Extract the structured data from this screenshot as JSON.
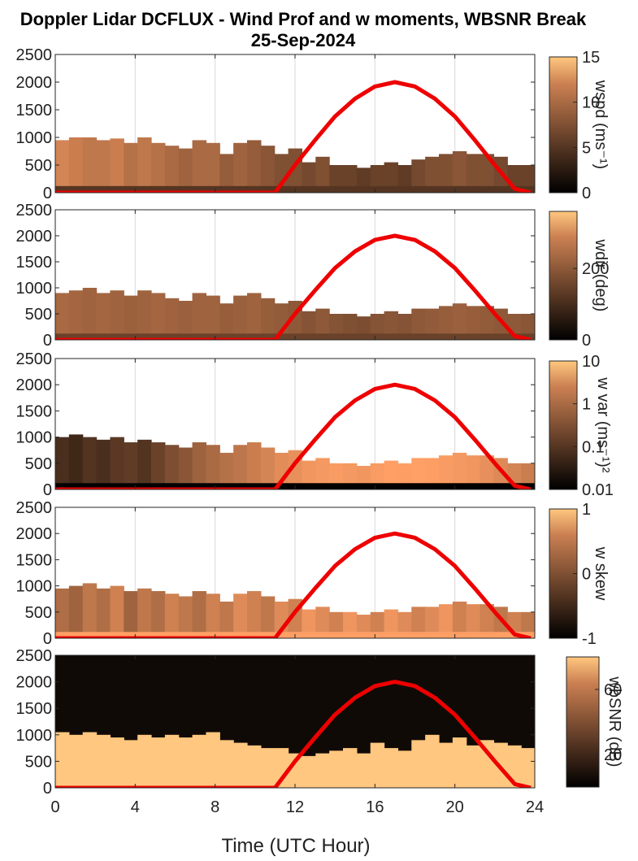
{
  "chart_data": {
    "type": "heatmap",
    "title": "Doppler Lidar DCFLUX - Wind Prof and w moments, WBSNR Break",
    "subtitle": "25-Sep-2024",
    "xlabel": "Time (UTC Hour)",
    "xlim": [
      0,
      24
    ],
    "xticks": [
      "0",
      "4",
      "8",
      "12",
      "16",
      "20",
      "24"
    ],
    "ylim": [
      0,
      2500
    ],
    "yticks": [
      "0",
      "500",
      "1000",
      "1500",
      "2000",
      "2500"
    ],
    "grid": true,
    "colormap": "copper",
    "overlay": {
      "type": "line",
      "color": "#ee0000",
      "x": [
        0,
        11,
        12,
        13,
        14,
        15,
        16,
        17,
        18,
        19,
        20,
        21,
        22,
        23,
        23.8
      ],
      "y": [
        0,
        0,
        500,
        950,
        1380,
        1700,
        1920,
        2000,
        1920,
        1700,
        1380,
        950,
        500,
        70,
        0
      ]
    },
    "panels": [
      {
        "colorbar_label": "wspd (ms⁻¹)",
        "clim": [
          0,
          15
        ],
        "colorbar_ticks": [
          "0",
          "5",
          "10",
          "15"
        ],
        "colorbar_scale": "linear",
        "layer_top_m": [
          950,
          1000,
          1000,
          950,
          980,
          900,
          1000,
          900,
          850,
          800,
          950,
          900,
          700,
          900,
          950,
          850,
          700,
          800,
          550,
          650,
          500,
          500,
          450,
          500,
          550,
          500,
          600,
          650,
          700,
          750,
          700,
          700,
          650,
          500,
          500
        ],
        "layer_value": [
          10,
          9.5,
          9,
          9,
          9.5,
          8.5,
          9,
          8.5,
          8,
          7.5,
          8,
          8,
          7,
          7.5,
          7,
          6.5,
          6,
          6,
          5.5,
          6,
          5,
          5,
          4.5,
          5,
          5,
          4.5,
          5.5,
          6,
          6,
          6.5,
          6,
          6,
          5.5,
          5,
          5
        ],
        "surface_value": 4
      },
      {
        "colorbar_label": "wdir (deg)",
        "clim": [
          0,
          360
        ],
        "colorbar_ticks": [
          "0",
          "200"
        ],
        "colorbar_scale": "linear",
        "layer_top_m": [
          900,
          950,
          1000,
          900,
          950,
          850,
          950,
          900,
          800,
          750,
          900,
          850,
          700,
          850,
          900,
          800,
          700,
          750,
          550,
          600,
          500,
          500,
          450,
          500,
          550,
          500,
          600,
          600,
          650,
          700,
          650,
          650,
          600,
          500,
          500
        ],
        "layer_value": [
          190,
          185,
          180,
          185,
          180,
          175,
          180,
          185,
          180,
          175,
          180,
          180,
          170,
          175,
          180,
          170,
          165,
          160,
          150,
          160,
          150,
          145,
          140,
          150,
          155,
          150,
          160,
          165,
          170,
          175,
          170,
          165,
          160,
          160,
          155
        ],
        "surface_value": 120
      },
      {
        "colorbar_label": "w var (ms⁻¹)²",
        "clim": [
          0.01,
          10
        ],
        "colorbar_ticks": [
          "0.01",
          "0.1",
          "1",
          "10"
        ],
        "colorbar_scale": "log",
        "layer_top_m": [
          1000,
          1050,
          1000,
          950,
          1000,
          900,
          950,
          900,
          850,
          800,
          900,
          850,
          700,
          850,
          900,
          800,
          700,
          750,
          550,
          600,
          500,
          500,
          450,
          500,
          550,
          500,
          600,
          600,
          650,
          700,
          650,
          650,
          600,
          500,
          500
        ],
        "layer_value": [
          0.05,
          0.04,
          0.06,
          0.05,
          0.07,
          0.08,
          0.06,
          0.1,
          0.15,
          0.2,
          0.3,
          0.4,
          0.5,
          0.6,
          0.8,
          1.0,
          1.3,
          1.5,
          1.8,
          2.0,
          2.2,
          2.0,
          1.8,
          2.2,
          2.5,
          2.4,
          2.6,
          2.4,
          2.2,
          2.0,
          1.8,
          1.5,
          1.2,
          1.0,
          0.8
        ],
        "surface_value": 0.01
      },
      {
        "colorbar_label": "w skew",
        "clim": [
          -1,
          1
        ],
        "colorbar_ticks": [
          "-1",
          "0",
          "1"
        ],
        "colorbar_scale": "linear",
        "layer_top_m": [
          950,
          1000,
          1050,
          950,
          1000,
          900,
          950,
          900,
          850,
          800,
          900,
          850,
          700,
          850,
          900,
          800,
          700,
          750,
          550,
          600,
          500,
          500,
          450,
          500,
          550,
          500,
          600,
          600,
          650,
          700,
          650,
          650,
          600,
          500,
          500
        ],
        "layer_value": [
          0.1,
          0.0,
          0.2,
          0.1,
          0.3,
          0.0,
          0.2,
          0.1,
          0.3,
          0.2,
          0.1,
          0.3,
          0.2,
          0.4,
          0.3,
          0.2,
          0.4,
          0.3,
          0.5,
          0.4,
          0.3,
          0.5,
          0.4,
          0.3,
          0.5,
          0.4,
          0.3,
          0.4,
          0.5,
          0.3,
          0.4,
          0.3,
          0.2,
          0.3,
          0.2
        ],
        "surface_value": 0.6
      },
      {
        "colorbar_label": "wbSNR (dB)",
        "clim": [
          0,
          80
        ],
        "colorbar_ticks": [
          "20",
          "60"
        ],
        "colorbar_scale": "linear",
        "layer_top_m": [
          1050,
          1000,
          1050,
          1000,
          950,
          900,
          1000,
          950,
          1000,
          950,
          1000,
          1050,
          900,
          850,
          800,
          750,
          750,
          650,
          600,
          650,
          700,
          750,
          650,
          850,
          750,
          700,
          900,
          1000,
          850,
          950,
          800,
          900,
          850,
          800,
          750
        ],
        "layer_value": [
          80,
          80,
          80,
          80,
          80,
          80,
          80,
          80,
          80,
          80,
          80,
          80,
          80,
          80,
          80,
          80,
          80,
          80,
          80,
          80,
          80,
          80,
          80,
          80,
          80,
          80,
          80,
          80,
          80,
          80,
          80,
          80,
          80,
          80,
          80
        ],
        "surface_value": 80,
        "background_value": 4
      }
    ]
  }
}
